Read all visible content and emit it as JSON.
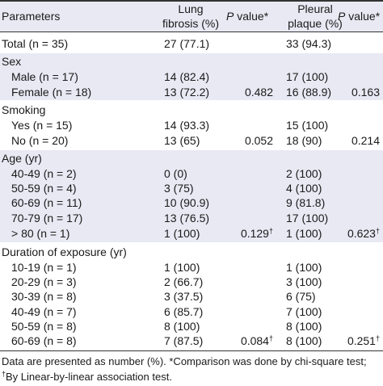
{
  "header": {
    "parameters": "Parameters",
    "lung_line1": "Lung",
    "lung_line2": "fibrosis (%)",
    "p_italic": "P",
    "p_rest": " value*",
    "plaque_line1": "Pleural",
    "plaque_line2": "plaque (%)"
  },
  "rows": {
    "total": {
      "label": "Total (n = 35)",
      "lung": "27 (77.1)",
      "plaque": "33 (94.3)"
    },
    "sex": {
      "label": "Sex"
    },
    "male": {
      "label": "Male (n = 17)",
      "lung": "14 (82.4)",
      "plaque": "17 (100)"
    },
    "female": {
      "label": "Female (n = 18)",
      "lung": "13 (72.2)",
      "p1": "0.482",
      "plaque": "16 (88.9)",
      "p2": "0.163"
    },
    "smoking": {
      "label": "Smoking"
    },
    "yes": {
      "label": "Yes (n = 15)",
      "lung": "14 (93.3)",
      "plaque": "15 (100)"
    },
    "no": {
      "label": "No (n = 20)",
      "lung": "13 (65)",
      "p1": "0.052",
      "plaque": "18 (90)",
      "p2": "0.214"
    },
    "age": {
      "label": "Age (yr)"
    },
    "age40": {
      "label": "40-49 (n = 2)",
      "lung": "0 (0)",
      "plaque": "2 (100)"
    },
    "age50": {
      "label": "50-59 (n = 4)",
      "lung": "3 (75)",
      "plaque": "4 (100)"
    },
    "age60": {
      "label": "60-69 (n = 11)",
      "lung": "10 (90.9)",
      "plaque": "9 (81.8)"
    },
    "age70": {
      "label": "70-79 (n = 17)",
      "lung": "13 (76.5)",
      "plaque": "17 (100)"
    },
    "age80": {
      "label": "> 80 (n = 1)",
      "lung": "1 (100)",
      "p1": "0.129",
      "p1_sup": "†",
      "plaque": "1 (100)",
      "p2": "0.623",
      "p2_sup": "†"
    },
    "duration": {
      "label": "Duration of exposure (yr)"
    },
    "d10": {
      "label": "10-19 (n = 1)",
      "lung": "1 (100)",
      "plaque": "1 (100)"
    },
    "d20": {
      "label": "20-29 (n = 3)",
      "lung": "2 (66.7)",
      "plaque": "3 (100)"
    },
    "d30": {
      "label": "30-39 (n = 8)",
      "lung": "3 (37.5)",
      "plaque": "6 (75)"
    },
    "d40": {
      "label": "40-49 (n = 7)",
      "lung": "6 (85.7)",
      "plaque": "7 (100)"
    },
    "d50": {
      "label": "50-59 (n = 8)",
      "lung": "8 (100)",
      "plaque": "8 (100)"
    },
    "d60": {
      "label": "60-69 (n = 8)",
      "lung": "7 (87.5)",
      "p1": "0.084",
      "p1_sup": "†",
      "plaque": "8 (100)",
      "p2": "0.251",
      "p2_sup": "†"
    }
  },
  "footnote": {
    "part1": "Data are presented as number (%). *Comparison was done by chi-square test; ",
    "dagger": "†",
    "part2": "By Linear-by-linear association test."
  }
}
